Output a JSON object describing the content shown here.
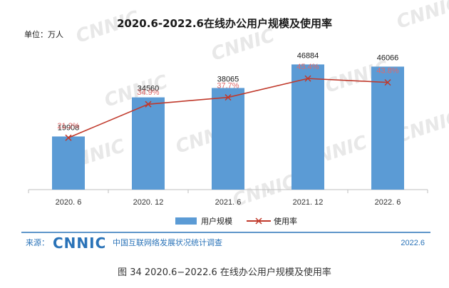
{
  "header": {
    "title": "2020.6-2022.6在线办公用户规模及使用率",
    "unit": "单位：万人"
  },
  "watermark": {
    "text": "CNNIC"
  },
  "chart_data": {
    "type": "bar",
    "title": "2020.6-2022.6在线办公用户规模及使用率",
    "categories": [
      "2020. 6",
      "2020. 12",
      "2021. 6",
      "2021. 12",
      "2022. 6"
    ],
    "series": [
      {
        "name": "用户规模",
        "kind": "bar",
        "color": "#5b9bd5",
        "values": [
          19908,
          34560,
          38065,
          46884,
          46066
        ]
      },
      {
        "name": "使用率",
        "kind": "line",
        "color": "#c0392b",
        "label_color": "#e06a6a",
        "values": [
          21.2,
          34.9,
          37.7,
          45.4,
          43.8
        ]
      }
    ],
    "value_labels": [
      "19908",
      "34560",
      "38065",
      "46884",
      "46066"
    ],
    "rate_labels": [
      "21.2%",
      "34.9%",
      "37.7%",
      "45.4%",
      "43.8%"
    ],
    "ylim_bars": [
      0,
      55000
    ],
    "ylim_rate": [
      0,
      60
    ],
    "grid": false,
    "legend_position": "bottom"
  },
  "legend": {
    "bar_label": "用户规模",
    "line_label": "使用率"
  },
  "footer": {
    "source_label": "来源：",
    "logo_text": "CNNIC",
    "org_name": "中国互联网络发展状况统计调查",
    "date": "2022.6",
    "divider_color": "#2a73b8"
  },
  "caption": "图 34  2020.6−2022.6 在线办公用户规模及使用率"
}
